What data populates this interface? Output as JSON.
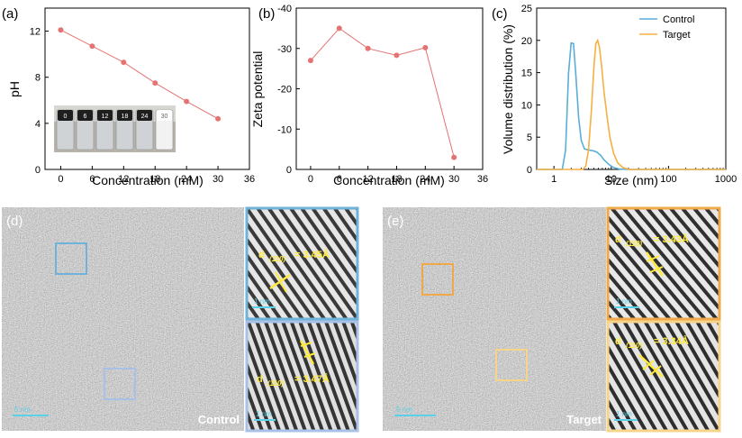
{
  "chart_data": [
    {
      "panel": "(a)",
      "type": "line",
      "xlabel": "Concentration (mM)",
      "ylabel": "pH",
      "x": [
        0,
        6,
        12,
        18,
        24,
        30
      ],
      "y": [
        12.1,
        10.7,
        9.3,
        7.5,
        5.9,
        4.4
      ],
      "xlim": [
        -3,
        36
      ],
      "ylim": [
        0,
        14
      ],
      "xticks": [
        "0",
        "6",
        "12",
        "18",
        "24",
        "30",
        "36"
      ],
      "yticks": [
        "0",
        "4",
        "8",
        "12"
      ],
      "line_color": "#e57373",
      "inset_vial_labels": [
        "0",
        "6",
        "12",
        "18",
        "24",
        "30"
      ]
    },
    {
      "panel": "(b)",
      "type": "line",
      "xlabel": "Concentration (mM)",
      "ylabel": "Zeta potential",
      "x": [
        0,
        6,
        12,
        18,
        24,
        30
      ],
      "y": [
        -27,
        -35,
        -30,
        -28.3,
        -30.2,
        -3
      ],
      "xlim": [
        -3,
        36
      ],
      "ylim": [
        0,
        -40
      ],
      "xticks": [
        "0",
        "6",
        "12",
        "18",
        "24",
        "30",
        "36"
      ],
      "yticks": [
        "0",
        "-10",
        "-20",
        "-30",
        "-40"
      ],
      "line_color": "#e57373"
    },
    {
      "panel": "(c)",
      "type": "line",
      "xlabel": "Size (nm)",
      "ylabel": "Volume distribution (%)",
      "xscale": "log",
      "xlim": [
        0.5,
        1000
      ],
      "ylim": [
        0,
        25
      ],
      "xticks": [
        "1",
        "10",
        "100",
        "1000"
      ],
      "yticks": [
        "0",
        "5",
        "10",
        "15",
        "20",
        "25"
      ],
      "legend": "top-right",
      "series": [
        {
          "name": "Control",
          "color": "#5aaed6",
          "x": [
            0.5,
            1.4,
            1.6,
            1.8,
            2.0,
            2.2,
            2.4,
            2.7,
            3.0,
            3.4,
            4.0,
            4.8,
            5.6,
            6.5,
            7.5,
            9.0,
            11,
            14,
            20,
            1000
          ],
          "y": [
            0,
            0,
            3,
            15,
            19.6,
            19.5,
            15,
            8,
            4.5,
            3.2,
            3.0,
            2.9,
            2.7,
            2.2,
            1.5,
            0.8,
            0.3,
            0.05,
            0,
            0
          ]
        },
        {
          "name": "Target",
          "color": "#f5b041",
          "x": [
            0.5,
            3.2,
            3.6,
            4.0,
            4.5,
            5.0,
            5.4,
            5.8,
            6.2,
            6.8,
            7.5,
            8.5,
            9.5,
            11,
            13,
            16,
            20,
            1000
          ],
          "y": [
            0,
            0,
            0.5,
            3,
            9,
            16,
            19.5,
            20,
            19,
            16,
            12,
            8,
            5,
            2.5,
            1,
            0.3,
            0,
            0
          ]
        }
      ]
    }
  ],
  "tem_panels": [
    {
      "label": "(d)",
      "caption": "Control",
      "frame_color": "#6fb3da",
      "frame_color_lower": "#a9c1e6",
      "scalebar_main": "5 nm",
      "insets": [
        {
          "d_label": "d",
          "d_sub": "(110)",
          "d_value": "= 3.45Å",
          "scalebar": "1 nm"
        },
        {
          "d_label": "d",
          "d_sub": "(110)",
          "d_value": "= 3.47Å",
          "scalebar": "1 nm"
        }
      ]
    },
    {
      "label": "(e)",
      "caption": "Target",
      "frame_color": "#f0a94a",
      "frame_color_lower": "#f6d58a",
      "scalebar_main": "5 nm",
      "insets": [
        {
          "d_label": "d",
          "d_sub": "(110)",
          "d_value": "= 3.43Å",
          "scalebar": "1 nm"
        },
        {
          "d_label": "d",
          "d_sub": "(110)",
          "d_value": "= 3.34Å",
          "scalebar": "1 nm"
        }
      ]
    }
  ]
}
